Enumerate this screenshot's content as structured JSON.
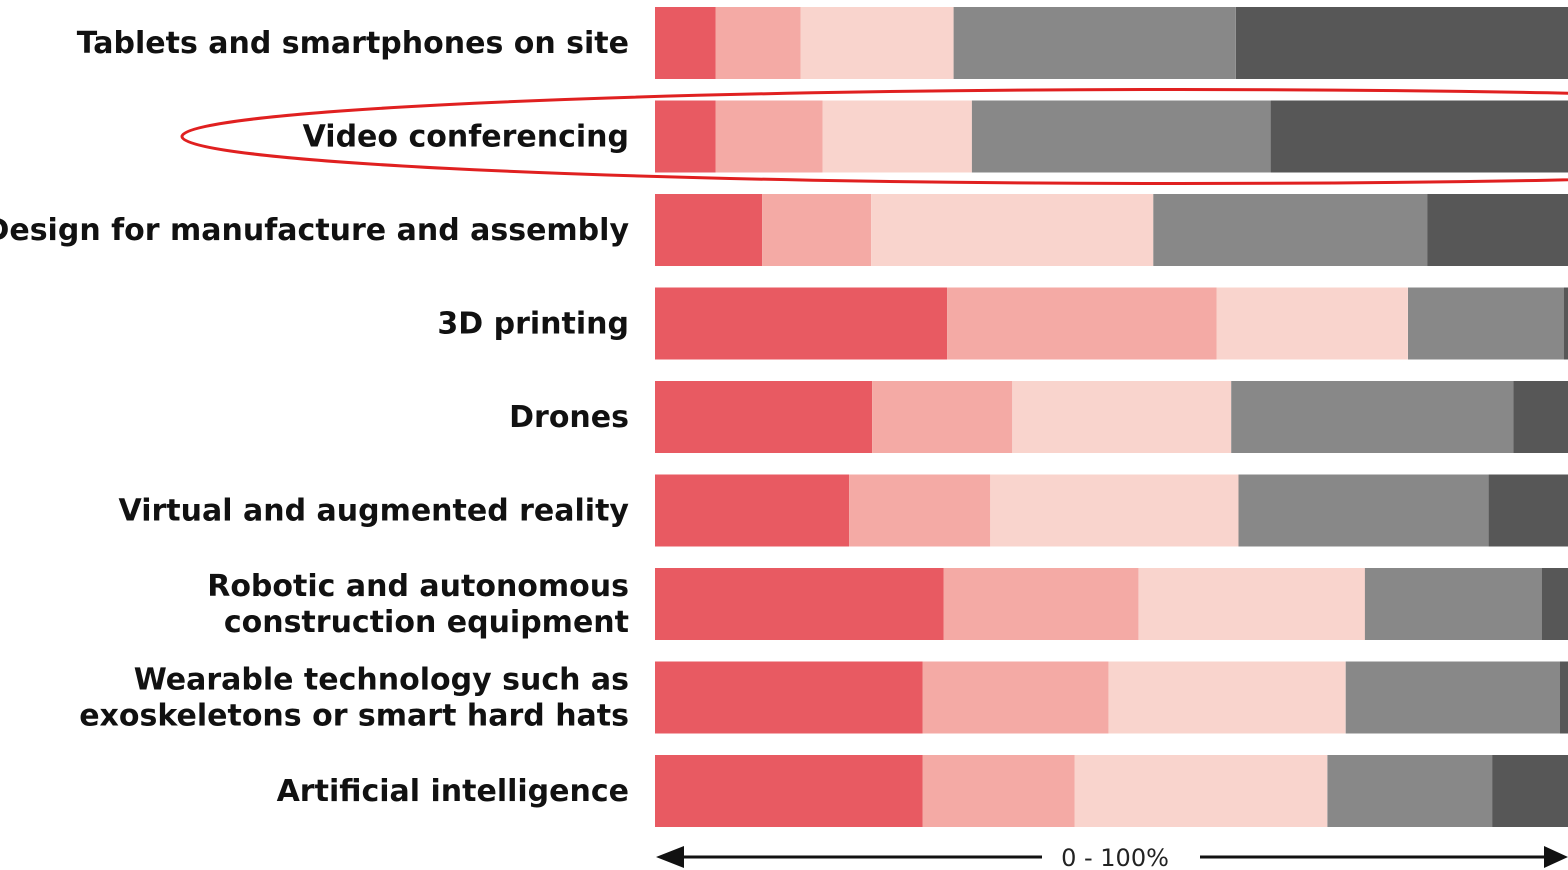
{
  "chart_data": {
    "type": "bar",
    "orientation": "horizontal",
    "stacked": true,
    "categories": [
      [
        "Tablets and smartphones on site"
      ],
      [
        "Video conferencing"
      ],
      [
        "Design for manufacture and assembly"
      ],
      [
        "3D printing"
      ],
      [
        "Drones"
      ],
      [
        "Virtual and augmented reality"
      ],
      [
        "Robotic and autonomous",
        "construction equipment"
      ],
      [
        "Wearable technology such as",
        "exoskeletons or smart hard hats"
      ],
      [
        "Artificial intelligence"
      ]
    ],
    "series": [
      {
        "values": [
          6.6,
          6.6,
          11.7,
          31.9,
          23.7,
          21.2,
          31.5,
          29.2,
          29.2
        ]
      },
      {
        "values": [
          9.3,
          11.7,
          11.9,
          29.4,
          15.3,
          15.4,
          21.3,
          20.3,
          16.6
        ]
      },
      {
        "values": [
          16.7,
          16.3,
          30.8,
          20.9,
          23.9,
          27.1,
          24.7,
          25.9,
          27.6
        ]
      },
      {
        "values": [
          30.8,
          32.6,
          29.9,
          17.0,
          30.8,
          27.3,
          19.3,
          23.4,
          18.0
        ]
      },
      {
        "values": [
          36.6,
          32.8,
          15.7,
          0.8,
          6.3,
          9.0,
          3.2,
          1.2,
          10.2
        ]
      }
    ],
    "colors": [
      "#e85a62",
      "#f4aaa5",
      "#f9d4cd",
      "#888888",
      "#575757"
    ],
    "xlim": [
      0,
      100
    ],
    "visible_fraction": 0.9967,
    "axis_label": "0 - 100%",
    "highlight_category_index": 1,
    "highlight_color": "#e02020",
    "legend": "none",
    "grid": false
  }
}
